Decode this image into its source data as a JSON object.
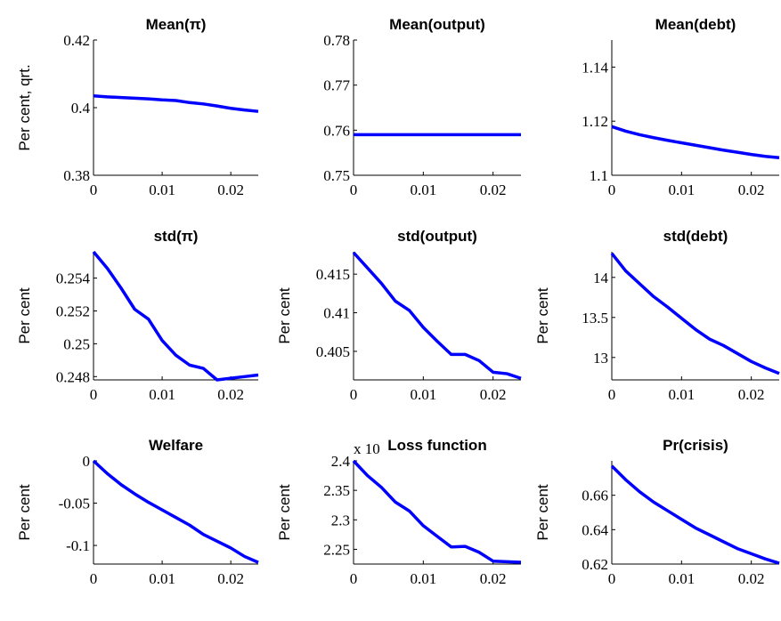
{
  "chart_data": [
    {
      "type": "line",
      "title": "Mean(π)",
      "ylabel": "Per cent, qrt.",
      "color": "#0000ff",
      "x": [
        0,
        0.002,
        0.004,
        0.006,
        0.008,
        0.01,
        0.012,
        0.014,
        0.016,
        0.018,
        0.02,
        0.022,
        0.024
      ],
      "values": [
        0.4035,
        0.4032,
        0.403,
        0.4028,
        0.4026,
        0.4023,
        0.4021,
        0.4015,
        0.4011,
        0.4005,
        0.3998,
        0.3993,
        0.3989
      ],
      "xlim": [
        0,
        0.024
      ],
      "xticks": [
        0,
        0.01,
        0.02
      ],
      "ylim": [
        0.38,
        0.42
      ],
      "yticks": [
        0.38,
        0.4,
        0.42
      ]
    },
    {
      "type": "line",
      "title": "Mean(output)",
      "color": "#0000ff",
      "x": [
        0,
        0.002,
        0.004,
        0.006,
        0.008,
        0.01,
        0.012,
        0.014,
        0.016,
        0.018,
        0.02,
        0.022,
        0.024
      ],
      "values": [
        0.759,
        0.759,
        0.759,
        0.759,
        0.759,
        0.759,
        0.759,
        0.759,
        0.759,
        0.759,
        0.759,
        0.759,
        0.759
      ],
      "xlim": [
        0,
        0.024
      ],
      "xticks": [
        0,
        0.01,
        0.02
      ],
      "ylim": [
        0.75,
        0.78
      ],
      "yticks": [
        0.75,
        0.76,
        0.77,
        0.78
      ]
    },
    {
      "type": "line",
      "title": "Mean(debt)",
      "color": "#0000ff",
      "x": [
        0,
        0.002,
        0.004,
        0.006,
        0.008,
        0.01,
        0.012,
        0.014,
        0.016,
        0.018,
        0.02,
        0.022,
        0.024
      ],
      "values": [
        1.118,
        1.1163,
        1.115,
        1.1139,
        1.1129,
        1.112,
        1.1111,
        1.1102,
        1.1093,
        1.1085,
        1.1077,
        1.107,
        1.1065
      ],
      "xlim": [
        0,
        0.024
      ],
      "xticks": [
        0,
        0.01,
        0.02
      ],
      "ylim": [
        1.1,
        1.15
      ],
      "yticks": [
        1.1,
        1.12,
        1.14
      ]
    },
    {
      "type": "line",
      "title": "std(π)",
      "ylabel": "Per cent",
      "color": "#0000ff",
      "x": [
        0,
        0.002,
        0.004,
        0.006,
        0.008,
        0.01,
        0.012,
        0.014,
        0.016,
        0.018,
        0.02,
        0.022,
        0.024
      ],
      "values": [
        0.2556,
        0.2546,
        0.2534,
        0.2521,
        0.2515,
        0.2502,
        0.2493,
        0.2487,
        0.2485,
        0.2478,
        0.2479,
        0.248,
        0.2481
      ],
      "xlim": [
        0,
        0.024
      ],
      "xticks": [
        0,
        0.01,
        0.02
      ],
      "ylim": [
        0.2478,
        0.2556
      ],
      "yticks": [
        0.248,
        0.25,
        0.252,
        0.254
      ]
    },
    {
      "type": "line",
      "title": "std(output)",
      "ylabel": "Per cent",
      "color": "#0000ff",
      "x": [
        0,
        0.002,
        0.004,
        0.006,
        0.008,
        0.01,
        0.012,
        0.014,
        0.016,
        0.018,
        0.02,
        0.022,
        0.024
      ],
      "values": [
        0.4178,
        0.4158,
        0.4138,
        0.4115,
        0.4103,
        0.4081,
        0.4063,
        0.4046,
        0.4046,
        0.4038,
        0.4023,
        0.4021,
        0.4015
      ],
      "xlim": [
        0,
        0.024
      ],
      "xticks": [
        0,
        0.01,
        0.02
      ],
      "ylim": [
        0.4013,
        0.4179
      ],
      "yticks": [
        0.405,
        0.41,
        0.415
      ]
    },
    {
      "type": "line",
      "title": "std(debt)",
      "ylabel": "Per cent",
      "color": "#0000ff",
      "x": [
        0,
        0.002,
        0.004,
        0.006,
        0.008,
        0.01,
        0.012,
        0.014,
        0.016,
        0.018,
        0.02,
        0.022,
        0.024
      ],
      "values": [
        14.3,
        14.08,
        13.92,
        13.76,
        13.63,
        13.49,
        13.35,
        13.23,
        13.15,
        13.05,
        12.95,
        12.87,
        12.8
      ],
      "xlim": [
        0,
        0.024
      ],
      "xticks": [
        0,
        0.01,
        0.02
      ],
      "ylim": [
        12.72,
        14.32
      ],
      "yticks": [
        13,
        13.5,
        14
      ]
    },
    {
      "type": "line",
      "title": "Welfare",
      "ylabel": "Per cent",
      "color": "#0000ff",
      "x": [
        0,
        0.002,
        0.004,
        0.006,
        0.008,
        0.01,
        0.012,
        0.014,
        0.016,
        0.018,
        0.02,
        0.022,
        0.024
      ],
      "values": [
        0,
        -0.015,
        -0.028,
        -0.039,
        -0.049,
        -0.058,
        -0.067,
        -0.076,
        -0.087,
        -0.095,
        -0.103,
        -0.113,
        -0.12
      ],
      "xlim": [
        0,
        0.024
      ],
      "xticks": [
        0,
        0.01,
        0.02
      ],
      "ylim": [
        -0.122,
        0
      ],
      "yticks": [
        -0.1,
        -0.05,
        0
      ]
    },
    {
      "type": "line",
      "title": "Loss function",
      "ylabel": "Per cent",
      "annotation": "x 10",
      "color": "#0000ff",
      "x": [
        0,
        0.002,
        0.004,
        0.006,
        0.008,
        0.01,
        0.012,
        0.014,
        0.016,
        0.018,
        0.02,
        0.022,
        0.024
      ],
      "values": [
        2.4,
        2.375,
        2.355,
        2.33,
        2.315,
        2.29,
        2.272,
        2.254,
        2.255,
        2.245,
        2.23,
        2.229,
        2.228
      ],
      "xlim": [
        0,
        0.024
      ],
      "xticks": [
        0,
        0.01,
        0.02
      ],
      "ylim": [
        2.225,
        2.4
      ],
      "yticks": [
        2.25,
        2.3,
        2.35,
        2.4
      ]
    },
    {
      "type": "line",
      "title": "Pr(crisis)",
      "ylabel": "Per cent",
      "color": "#0000ff",
      "x": [
        0,
        0.002,
        0.004,
        0.006,
        0.008,
        0.01,
        0.012,
        0.014,
        0.016,
        0.018,
        0.02,
        0.022,
        0.024
      ],
      "values": [
        0.677,
        0.669,
        0.662,
        0.656,
        0.651,
        0.646,
        0.641,
        0.637,
        0.633,
        0.629,
        0.626,
        0.623,
        0.6205
      ],
      "xlim": [
        0,
        0.024
      ],
      "xticks": [
        0,
        0.01,
        0.02
      ],
      "ylim": [
        0.62,
        0.68
      ],
      "yticks": [
        0.62,
        0.64,
        0.66
      ]
    }
  ]
}
